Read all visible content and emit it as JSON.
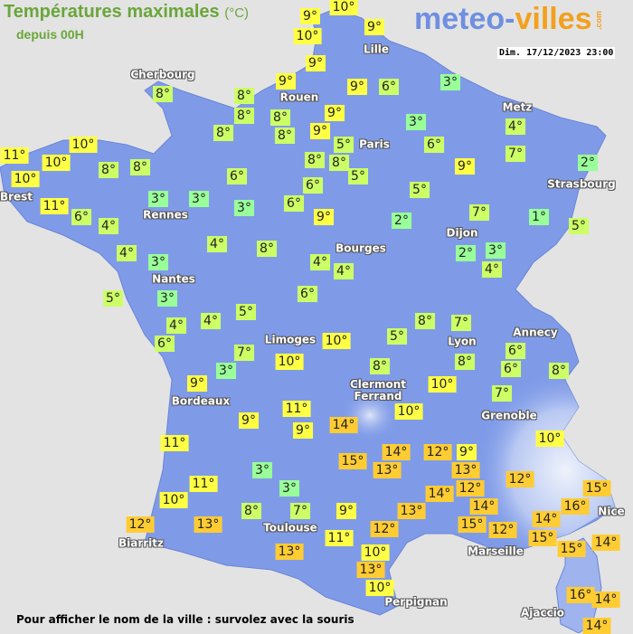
{
  "header": {
    "title": "Températures maximales",
    "unit": "(°C)",
    "subtitle": "depuis 00H",
    "logo_main": "meteo-",
    "logo_accent": "villes",
    "logo_suffix": ".com",
    "datetime": "Dim. 17/12/2023 23:00"
  },
  "footer": {
    "hint": "Pour afficher le nom de la ville : survolez avec la souris"
  },
  "colors": {
    "land": "#7f9be8",
    "sea": "#e3e3e3",
    "cold": "#99ff99",
    "mild": "#ccff66",
    "warm": "#ffff44",
    "hot": "#ffcc33"
  },
  "cities": [
    "Cherbourg",
    "Rouen",
    "Lille",
    "Paris",
    "Metz",
    "Strasbourg",
    "Brest",
    "Rennes",
    "Nantes",
    "Dijon",
    "Bourges",
    "Limoges",
    "Lyon",
    "Annecy",
    "Clermont\nFerrand",
    "Grenoble",
    "Bordeaux",
    "Toulouse",
    "Biarritz",
    "Perpignan",
    "Marseille",
    "Nice",
    "Ajaccio"
  ],
  "temperatures": [
    "10°",
    "9°",
    "9°",
    "10°",
    "9°",
    "9°",
    "9°",
    "6°",
    "3°",
    "8°",
    "8°",
    "8°",
    "8°",
    "9°",
    "9°",
    "8°",
    "8°",
    "3°",
    "4°",
    "5°",
    "6°",
    "7°",
    "10°",
    "11°",
    "10°",
    "10°",
    "8°",
    "8°",
    "9°",
    "2°",
    "8°",
    "8°",
    "6°",
    "5°",
    "6°",
    "5°",
    "3°",
    "3°",
    "3°",
    "6°",
    "11°",
    "6°",
    "4°",
    "9°",
    "2°",
    "7°",
    "1°",
    "5°",
    "4°",
    "8°",
    "4°",
    "3°",
    "4°",
    "4°",
    "2°",
    "3°",
    "4°",
    "5°",
    "3°",
    "6°",
    "5°",
    "4°",
    "4°",
    "8°",
    "7°",
    "6°",
    "7°",
    "10°",
    "5°",
    "6°",
    "6°",
    "8°",
    "3°",
    "10°",
    "8°",
    "8°",
    "10°",
    "7°",
    "10°",
    "9°",
    "11°",
    "9°",
    "9°",
    "14°",
    "11°",
    "10°",
    "14°",
    "12°",
    "9°",
    "15°",
    "13°",
    "13°",
    "3°",
    "12°",
    "11°",
    "3°",
    "14°",
    "12°",
    "15°",
    "16°",
    "10°",
    "14°",
    "15°",
    "8°",
    "7°",
    "9°",
    "13°",
    "14°",
    "12°",
    "12°",
    "13°",
    "12°",
    "15°",
    "11°",
    "15°",
    "14°",
    "13°",
    "10°",
    "13°",
    "10°",
    "16°",
    "14°",
    "14°"
  ]
}
